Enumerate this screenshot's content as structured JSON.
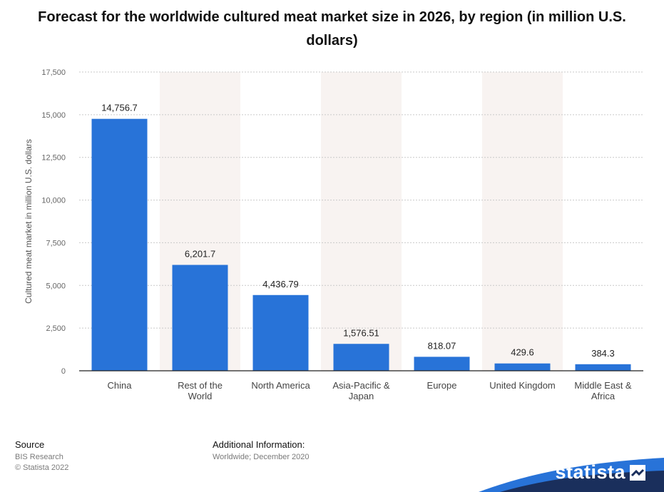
{
  "title": "Forecast for the worldwide cultured meat market size in 2026, by region (in million U.S. dollars)",
  "chart_data": {
    "type": "bar",
    "categories": [
      "China",
      "Rest of the World",
      "North America",
      "Asia-Pacific & Japan",
      "Europe",
      "United Kingdom",
      "Middle East & Africa"
    ],
    "category_lines": [
      [
        "China"
      ],
      [
        "Rest of the",
        "World"
      ],
      [
        "North America"
      ],
      [
        "Asia-Pacific &",
        "Japan"
      ],
      [
        "Europe"
      ],
      [
        "United Kingdom"
      ],
      [
        "Middle East &",
        "Africa"
      ]
    ],
    "values": [
      14756.7,
      6201.7,
      4436.79,
      1576.51,
      818.07,
      429.6,
      384.3
    ],
    "value_labels": [
      "14,756.7",
      "6,201.7",
      "4,436.79",
      "1,576.51",
      "818.07",
      "429.6",
      "384.3"
    ],
    "ylabel": "Cultured meat market in million U.S. dollars",
    "ylim": [
      0,
      17500
    ],
    "yticks": [
      0,
      2500,
      5000,
      7500,
      10000,
      12500,
      15000,
      17500
    ],
    "ytick_labels": [
      "0",
      "2,500",
      "5,000",
      "7,500",
      "10,000",
      "12,500",
      "15,000",
      "17,500"
    ],
    "grid": true,
    "bar_color": "#2873d8",
    "alt_band_color": "#f8f3f1"
  },
  "footer": {
    "source_heading": "Source",
    "source_lines": [
      "BIS Research",
      "© Statista 2022"
    ],
    "info_heading": "Additional Information:",
    "info_lines": [
      "Worldwide; December 2020"
    ]
  },
  "brand": {
    "name": "statista",
    "icon": "statista-logo-icon",
    "band_colors": [
      "#1a2f5c",
      "#2873d8"
    ]
  }
}
